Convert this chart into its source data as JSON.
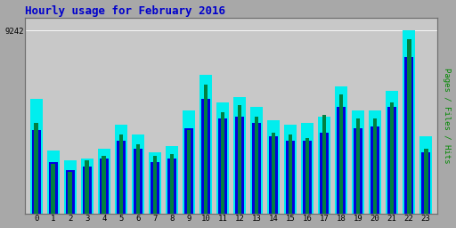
{
  "title": "Hourly usage for February 2016",
  "ylabel": "Pages / Files / Hits",
  "xlabel_ticks": [
    0,
    1,
    2,
    3,
    4,
    5,
    6,
    7,
    8,
    9,
    10,
    11,
    12,
    13,
    14,
    15,
    16,
    17,
    18,
    19,
    20,
    21,
    22,
    23
  ],
  "ytick_label": "9242",
  "title_color": "#0000cc",
  "title_fontsize": 9,
  "ylabel_color": "#008800",
  "plot_bg_color": "#c8c8c8",
  "fig_bg_color": "#a8a8a8",
  "pages_color": "#008040",
  "files_color": "#0000dd",
  "hits_color": "#00eeee",
  "hits": [
    5800,
    3200,
    2700,
    2800,
    3300,
    4500,
    4000,
    3100,
    3400,
    5200,
    7000,
    5600,
    5900,
    5400,
    4700,
    4500,
    4600,
    4900,
    6400,
    5200,
    5200,
    6200,
    9242,
    3900
  ],
  "files": [
    4200,
    2600,
    2200,
    2400,
    2800,
    3700,
    3300,
    2600,
    2800,
    4300,
    5800,
    4800,
    4900,
    4600,
    3900,
    3700,
    3700,
    4100,
    5400,
    4300,
    4400,
    5400,
    7900,
    3100
  ],
  "pages": [
    4600,
    2500,
    2100,
    2700,
    2900,
    4000,
    3500,
    2900,
    3000,
    4200,
    6500,
    5100,
    5500,
    4900,
    4100,
    4000,
    3800,
    5000,
    6000,
    4800,
    4800,
    5600,
    8800,
    3300
  ]
}
